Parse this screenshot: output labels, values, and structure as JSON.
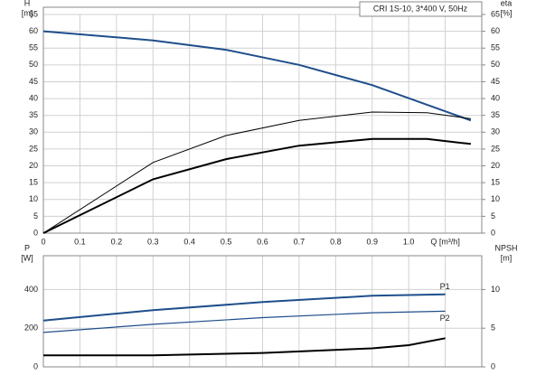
{
  "chart_data": [
    {
      "type": "line",
      "title": "CRI 1S-10, 3*400 V, 50Hz",
      "ylabel": "H",
      "yunit": "[m]",
      "y2label": "eta",
      "y2unit": "[%]",
      "xlim": [
        0,
        1.2
      ],
      "xticks": [
        0,
        0.1,
        0.2,
        0.3,
        0.4,
        0.5,
        0.6,
        0.7,
        0.8,
        0.9,
        {
          "value": 1.0,
          "label": "1.0"
        },
        {
          "value": 1.1,
          "label": "Q [m³/h]"
        }
      ],
      "ylim": [
        0,
        65
      ],
      "yticks": [
        0,
        5,
        10,
        15,
        20,
        25,
        30,
        35,
        40,
        45,
        50,
        55,
        60,
        65
      ],
      "y2lim": [
        0,
        65
      ],
      "y2ticks": [
        0,
        5,
        10,
        15,
        20,
        25,
        30,
        35,
        40,
        45,
        50,
        55,
        60,
        65
      ],
      "grid": true,
      "series": [
        {
          "color": "#1f4e8c",
          "width": 2,
          "axis": "y",
          "x": [
            0,
            0.3,
            0.5,
            0.7,
            0.9,
            1.17
          ],
          "values": [
            60,
            57.3,
            54.5,
            50,
            44,
            33.5
          ]
        },
        {
          "color": "#000000",
          "width": 1,
          "axis": "y2",
          "x": [
            0,
            0.3,
            0.5,
            0.7,
            0.9,
            1.05,
            1.17
          ],
          "values": [
            0,
            21,
            29,
            33.5,
            36,
            35.8,
            34
          ]
        },
        {
          "color": "#000000",
          "width": 2,
          "axis": "y2",
          "x": [
            0,
            0.3,
            0.5,
            0.7,
            0.9,
            1.05,
            1.17
          ],
          "values": [
            0,
            16,
            22,
            26,
            28,
            28,
            26.5
          ]
        }
      ]
    },
    {
      "type": "line",
      "ylabel": "P",
      "yunit": "[W]",
      "y2label": "NPSH",
      "y2unit": "[m]",
      "xlim": [
        0,
        1.2
      ],
      "ylim": [
        0,
        575
      ],
      "yticks": [
        0,
        200,
        400
      ],
      "y2lim": [
        0,
        14.375
      ],
      "y2ticks": [
        0,
        5,
        10
      ],
      "grid": true,
      "series": [
        {
          "name": "P1",
          "color": "#1f4e8c",
          "width": 2,
          "axis": "y",
          "x": [
            0,
            0.3,
            0.6,
            0.9,
            1.1
          ],
          "values": [
            240,
            293,
            335,
            368,
            375
          ]
        },
        {
          "name": "P2",
          "color": "#1f4e8c",
          "width": 1.2,
          "axis": "y",
          "x": [
            0,
            0.3,
            0.6,
            0.9,
            1.1
          ],
          "values": [
            178,
            220,
            255,
            280,
            288
          ]
        },
        {
          "color": "#000000",
          "width": 2,
          "axis": "y2",
          "x": [
            0,
            0.3,
            0.6,
            0.9,
            1.0,
            1.1
          ],
          "values": [
            1.5,
            1.5,
            1.8,
            2.4,
            2.8,
            3.7
          ]
        }
      ]
    }
  ]
}
